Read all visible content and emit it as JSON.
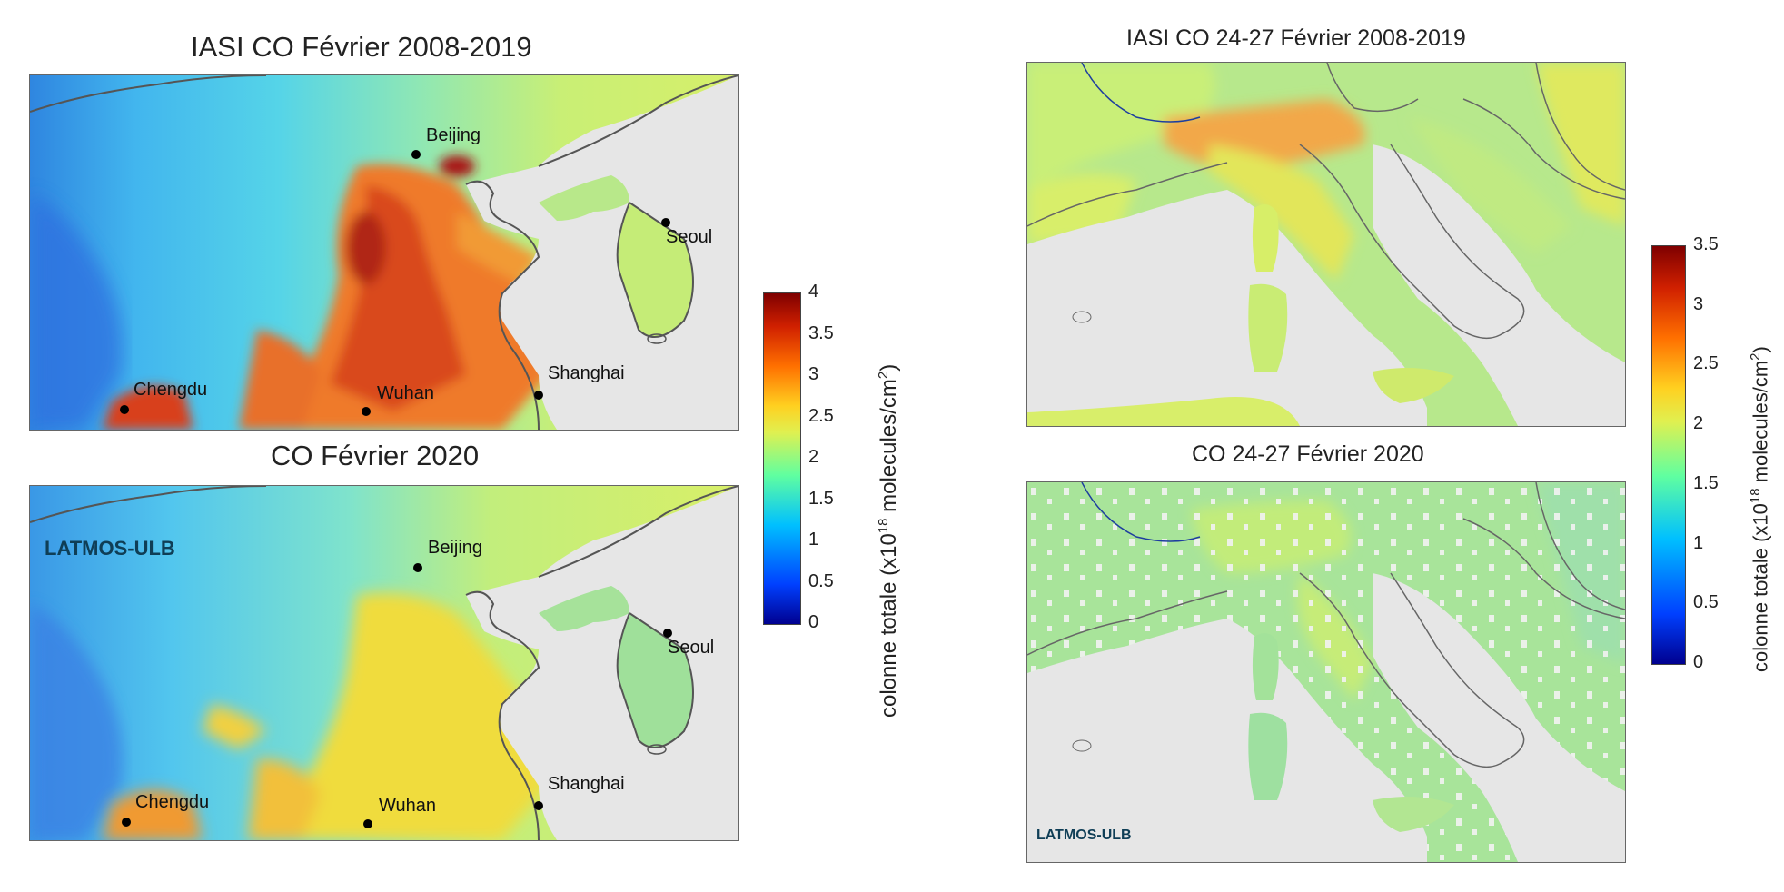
{
  "panels": {
    "china_clim": {
      "title": "IASI CO Février 2008-2019"
    },
    "china_2020": {
      "title": "CO Février 2020",
      "logo": "LATMOS-ULB"
    },
    "italy_clim": {
      "title": "IASI CO 24-27 Février 2008-2019"
    },
    "italy_2020": {
      "title": "CO 24-27 Février 2020",
      "logo": "LATMOS-ULB"
    }
  },
  "cities": {
    "beijing": "Beijing",
    "seoul": "Seoul",
    "chengdu": "Chengdu",
    "wuhan": "Wuhan",
    "shanghai": "Shanghai"
  },
  "colorbars": {
    "left": {
      "ticks": [
        "4",
        "3.5",
        "3",
        "2.5",
        "2",
        "1.5",
        "1",
        "0.5",
        "0"
      ],
      "range": [
        0,
        4
      ]
    },
    "right": {
      "ticks": [
        "3.5",
        "3",
        "2.5",
        "2",
        "1.5",
        "1",
        "0.5",
        "0"
      ],
      "range": [
        0,
        3.5
      ]
    },
    "label_main": "colonne totale (x10",
    "label_exp": "18",
    "label_mid": " molecules/cm",
    "label_exp2": "2",
    "label_end": ")"
  },
  "colors": {
    "land_missing": "#e6e6e6",
    "coast": "#555555",
    "colormap": [
      "#00008f",
      "#0040ff",
      "#00c0ff",
      "#60ffa0",
      "#e0f050",
      "#ffd020",
      "#ff7000",
      "#d02000",
      "#7f0000"
    ]
  }
}
